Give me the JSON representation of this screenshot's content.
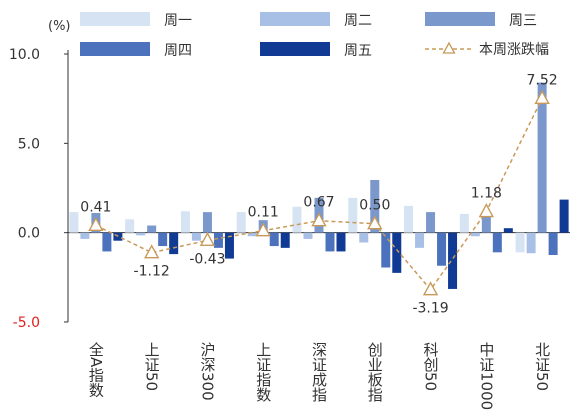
{
  "chart_data": {
    "type": "bar",
    "unit_label": "(%)",
    "y_ticks": [
      "10.0",
      "5.0",
      "0.0",
      "-5.0"
    ],
    "ylim": [
      -5,
      10
    ],
    "grid": false,
    "legend_position": "top",
    "categories": [
      "全A指数",
      "上证50",
      "沪深300",
      "上证指数",
      "深证成指",
      "创业板指",
      "科创50",
      "中证1000",
      "北证50"
    ],
    "series": [
      {
        "name": "周一",
        "kind": "bar",
        "color": "#d6e3f3",
        "values": [
          1.15,
          0.75,
          1.2,
          1.15,
          1.45,
          1.95,
          1.5,
          1.05,
          -1.1
        ]
      },
      {
        "name": "周二",
        "kind": "bar",
        "color": "#a9c0e6",
        "values": [
          -0.35,
          -0.15,
          -0.45,
          -0.2,
          -0.35,
          -0.55,
          -0.85,
          -0.2,
          -1.15
        ]
      },
      {
        "name": "周三",
        "kind": "bar",
        "color": "#7b98cc",
        "values": [
          1.1,
          0.4,
          1.15,
          0.7,
          1.95,
          2.95,
          1.15,
          0.95,
          8.4
        ]
      },
      {
        "name": "周四",
        "kind": "bar",
        "color": "#4c72bd",
        "values": [
          -1.05,
          -0.75,
          -0.85,
          -0.75,
          -1.05,
          -1.95,
          -1.85,
          -1.1,
          -1.25
        ]
      },
      {
        "name": "周五",
        "kind": "bar",
        "color": "#103a94",
        "values": [
          -0.45,
          -1.2,
          -1.45,
          -0.85,
          -1.05,
          -2.25,
          -3.15,
          0.25,
          1.85
        ]
      },
      {
        "name": "本周涨跌幅",
        "kind": "line",
        "color": "#c89a5a",
        "values": [
          0.41,
          -1.12,
          -0.43,
          0.11,
          0.67,
          0.5,
          -3.19,
          1.18,
          7.52
        ],
        "labels": [
          "0.41",
          "-1.12",
          "-0.43",
          "0.11",
          "0.67",
          "0.50",
          "-3.19",
          "1.18",
          "7.52"
        ]
      }
    ]
  }
}
